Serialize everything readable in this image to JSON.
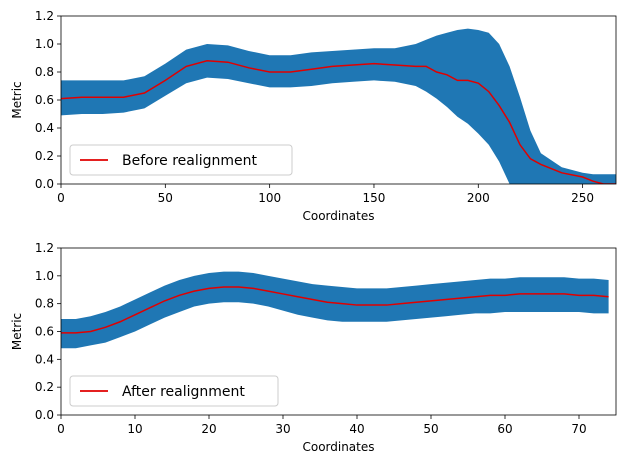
{
  "chart_data": [
    {
      "type": "line",
      "xlabel": "Coordinates",
      "ylabel": "Metric",
      "xlim": [
        0,
        266
      ],
      "ylim": [
        0,
        1.2
      ],
      "xticks": [
        0,
        50,
        100,
        150,
        200,
        250
      ],
      "yticks": [
        0.0,
        0.2,
        0.4,
        0.6,
        0.8,
        1.0,
        1.2
      ],
      "grid": false,
      "legend_position": "lower-left",
      "colors": {
        "band": "#1f77b4",
        "line": "#e00000"
      },
      "series": [
        {
          "name": "Before realignment",
          "x": [
            0,
            10,
            20,
            30,
            40,
            50,
            60,
            70,
            80,
            90,
            100,
            110,
            120,
            130,
            140,
            150,
            160,
            170,
            175,
            180,
            185,
            190,
            195,
            200,
            205,
            210,
            215,
            220,
            225,
            230,
            240,
            250,
            255,
            260,
            266
          ],
          "y": [
            0.61,
            0.62,
            0.62,
            0.62,
            0.65,
            0.74,
            0.84,
            0.88,
            0.87,
            0.83,
            0.8,
            0.8,
            0.82,
            0.84,
            0.85,
            0.86,
            0.85,
            0.84,
            0.84,
            0.8,
            0.78,
            0.74,
            0.74,
            0.72,
            0.66,
            0.56,
            0.44,
            0.28,
            0.18,
            0.14,
            0.08,
            0.05,
            0.02,
            0.0,
            0.0
          ],
          "lower": [
            0.49,
            0.5,
            0.5,
            0.51,
            0.54,
            0.63,
            0.72,
            0.76,
            0.75,
            0.72,
            0.69,
            0.69,
            0.7,
            0.72,
            0.73,
            0.74,
            0.73,
            0.7,
            0.66,
            0.61,
            0.55,
            0.48,
            0.43,
            0.36,
            0.28,
            0.16,
            0.0,
            0.0,
            0.0,
            0.0,
            0.0,
            0.0,
            0.0,
            0.0,
            0.0
          ],
          "upper": [
            0.74,
            0.74,
            0.74,
            0.74,
            0.77,
            0.86,
            0.96,
            1.0,
            0.99,
            0.95,
            0.92,
            0.92,
            0.94,
            0.95,
            0.96,
            0.97,
            0.97,
            1.0,
            1.03,
            1.06,
            1.08,
            1.1,
            1.11,
            1.1,
            1.08,
            1.0,
            0.84,
            0.62,
            0.38,
            0.22,
            0.12,
            0.08,
            0.07,
            0.07,
            0.07
          ]
        }
      ]
    },
    {
      "type": "line",
      "xlabel": "Coordinates",
      "ylabel": "Metric",
      "xlim": [
        0,
        75
      ],
      "ylim": [
        0,
        1.2
      ],
      "xticks": [
        0,
        10,
        20,
        30,
        40,
        50,
        60,
        70
      ],
      "yticks": [
        0.0,
        0.2,
        0.4,
        0.6,
        0.8,
        1.0,
        1.2
      ],
      "grid": false,
      "legend_position": "lower-left",
      "colors": {
        "band": "#1f77b4",
        "line": "#e00000"
      },
      "series": [
        {
          "name": "After realignment",
          "x": [
            0,
            2,
            4,
            6,
            8,
            10,
            12,
            14,
            16,
            18,
            20,
            22,
            24,
            26,
            28,
            30,
            32,
            34,
            36,
            38,
            40,
            42,
            44,
            46,
            48,
            50,
            52,
            54,
            56,
            58,
            60,
            62,
            64,
            66,
            68,
            70,
            72,
            74
          ],
          "y": [
            0.59,
            0.59,
            0.6,
            0.63,
            0.67,
            0.72,
            0.77,
            0.82,
            0.86,
            0.89,
            0.91,
            0.92,
            0.92,
            0.91,
            0.89,
            0.87,
            0.85,
            0.83,
            0.81,
            0.8,
            0.79,
            0.79,
            0.79,
            0.8,
            0.81,
            0.82,
            0.83,
            0.84,
            0.85,
            0.86,
            0.86,
            0.87,
            0.87,
            0.87,
            0.87,
            0.86,
            0.86,
            0.85
          ],
          "lower": [
            0.48,
            0.48,
            0.5,
            0.52,
            0.56,
            0.6,
            0.65,
            0.7,
            0.74,
            0.78,
            0.8,
            0.81,
            0.81,
            0.8,
            0.78,
            0.75,
            0.72,
            0.7,
            0.68,
            0.67,
            0.67,
            0.67,
            0.67,
            0.68,
            0.69,
            0.7,
            0.71,
            0.72,
            0.73,
            0.73,
            0.74,
            0.74,
            0.74,
            0.74,
            0.74,
            0.74,
            0.73,
            0.73
          ],
          "upper": [
            0.69,
            0.69,
            0.71,
            0.74,
            0.78,
            0.83,
            0.88,
            0.93,
            0.97,
            1.0,
            1.02,
            1.03,
            1.03,
            1.02,
            1.0,
            0.98,
            0.96,
            0.94,
            0.93,
            0.92,
            0.91,
            0.91,
            0.91,
            0.92,
            0.93,
            0.94,
            0.95,
            0.96,
            0.97,
            0.98,
            0.98,
            0.99,
            0.99,
            0.99,
            0.99,
            0.98,
            0.98,
            0.97
          ]
        }
      ]
    }
  ]
}
